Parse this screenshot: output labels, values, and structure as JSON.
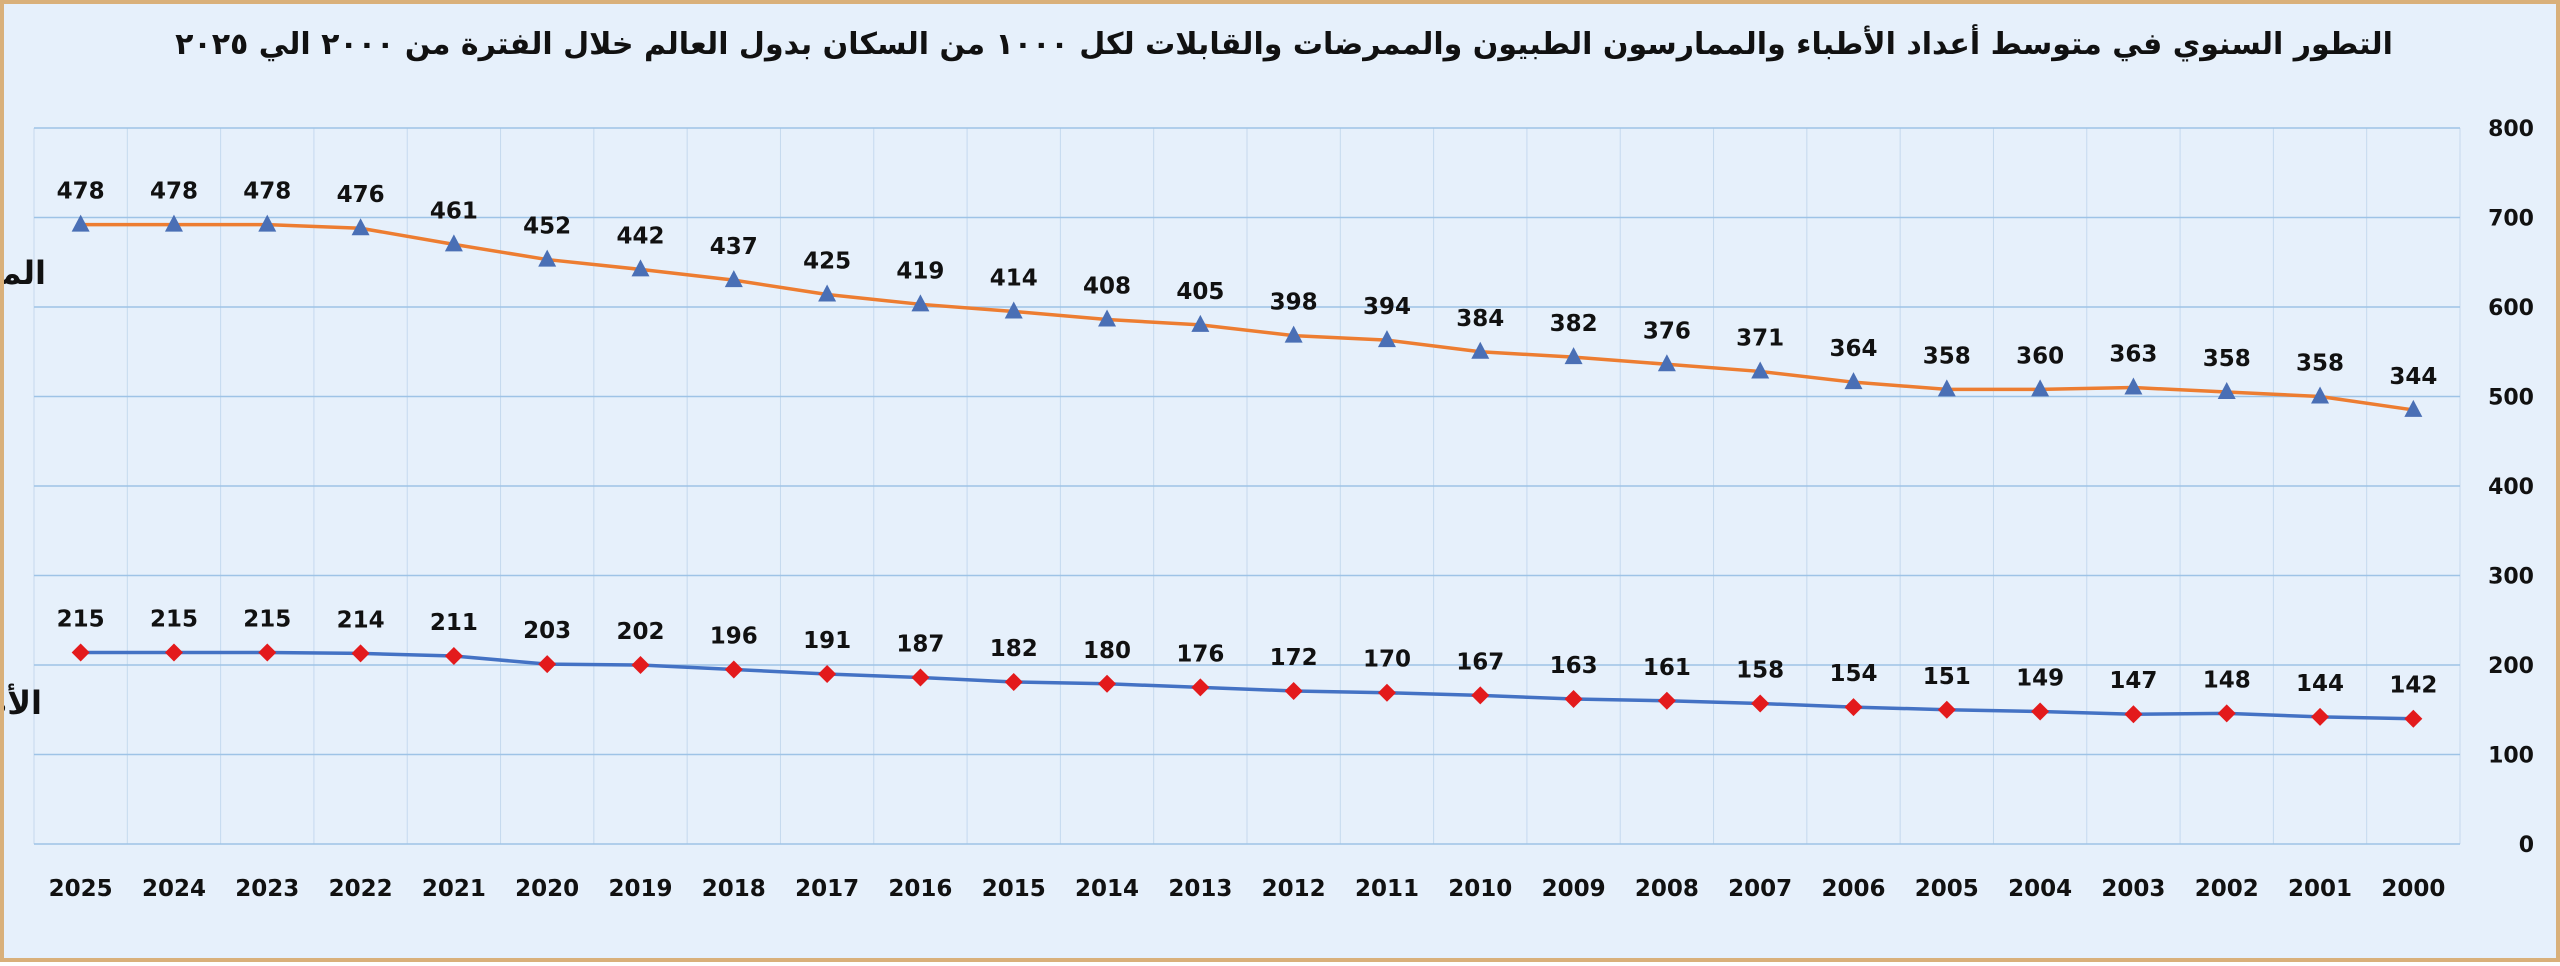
{
  "chart_data": {
    "type": "line",
    "title": "التطور السنوي في متوسط  أعداد الأطباء والممارسون الطبيون والممرضات والقابلات  لكل ١٠٠٠ من السكان بدول العالم  خلال الفترة من ٢٠٠٠ الي ٢٠٢٥",
    "xlabel": "",
    "ylabel": "",
    "ylim": [
      0,
      800
    ],
    "yticks": [
      0,
      100,
      200,
      300,
      400,
      500,
      600,
      700,
      800
    ],
    "grid": true,
    "x_direction": "right-to-left",
    "y_axis_side": "right",
    "categories": [
      "2000",
      "2001",
      "2002",
      "2003",
      "2004",
      "2005",
      "2006",
      "2007",
      "2008",
      "2009",
      "2010",
      "2011",
      "2012",
      "2013",
      "2014",
      "2015",
      "2016",
      "2017",
      "2018",
      "2019",
      "2020",
      "2021",
      "2022",
      "2023",
      "2024",
      "2025"
    ],
    "series": [
      {
        "name": "الممرضات والقابلات",
        "color": "#ed7d31",
        "marker": "triangle",
        "marker_color": "#4a6fb5",
        "values": [
          344,
          358,
          358,
          363,
          360,
          358,
          364,
          371,
          376,
          382,
          384,
          394,
          398,
          405,
          408,
          414,
          419,
          425,
          437,
          442,
          452,
          461,
          476,
          478,
          478,
          478
        ],
        "plotted_y": [
          485,
          500,
          505,
          510,
          508,
          508,
          516,
          528,
          536,
          544,
          550,
          563,
          568,
          580,
          586,
          595,
          603,
          614,
          630,
          642,
          653,
          670,
          688,
          692,
          692,
          692
        ]
      },
      {
        "name": "الأطباء والممارسون الطبيون",
        "color": "#4472c4",
        "marker": "diamond",
        "marker_color": "#e31a1c",
        "values": [
          142,
          144,
          148,
          147,
          149,
          151,
          154,
          158,
          161,
          163,
          167,
          170,
          172,
          176,
          180,
          182,
          187,
          191,
          196,
          202,
          203,
          211,
          214,
          215,
          215,
          215
        ],
        "plotted_y": [
          140,
          142,
          146,
          145,
          148,
          150,
          153,
          157,
          160,
          162,
          166,
          169,
          171,
          175,
          179,
          181,
          186,
          190,
          195,
          200,
          201,
          210,
          213,
          214,
          214,
          214
        ]
      }
    ]
  }
}
